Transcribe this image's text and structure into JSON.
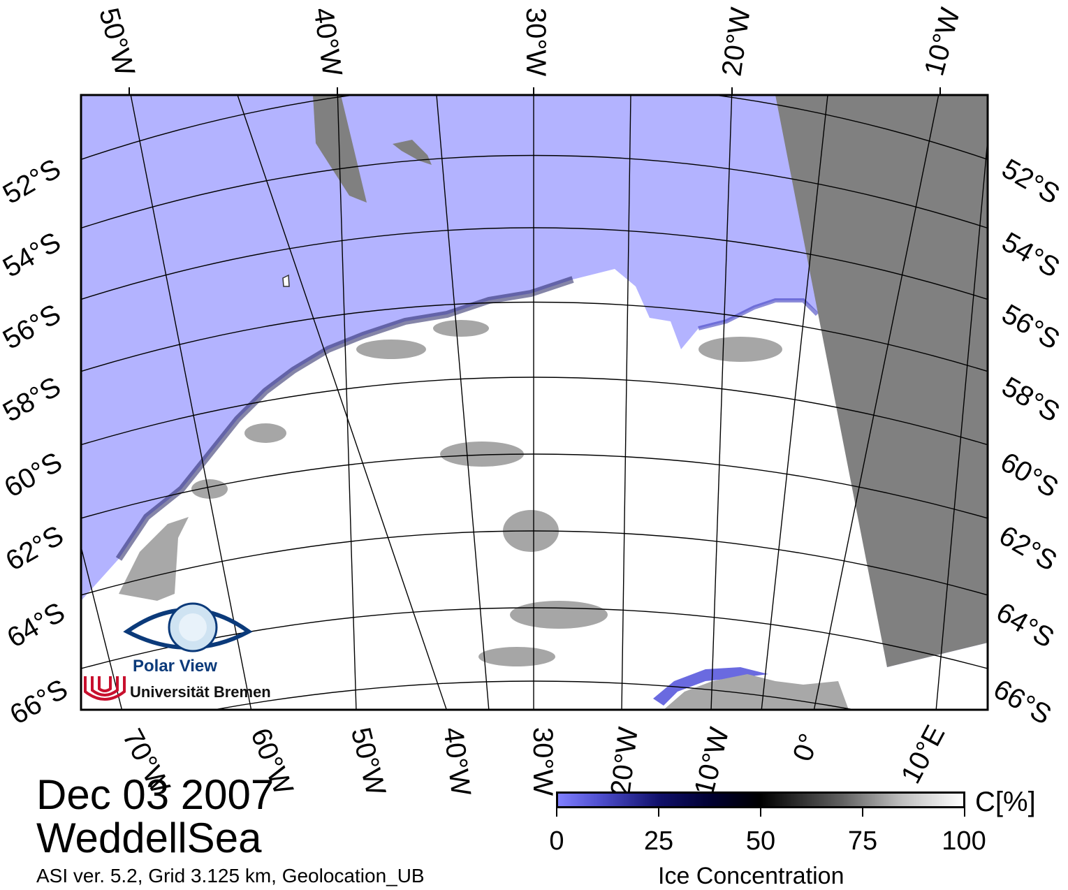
{
  "map": {
    "date": "Dec 03 2007",
    "region": "WeddellSea",
    "meta": "ASI ver. 5.2,  Grid 3.125 km, Geolocation_UB",
    "top_lon_labels": [
      "50°W",
      "40°W",
      "30°W",
      "20°W",
      "10°W"
    ],
    "bottom_lon_labels": [
      "70°W",
      "60°W",
      "50°W",
      "40°W",
      "30°W",
      "20°W",
      "10°W",
      "0°",
      "10°E"
    ],
    "left_lat_labels": [
      "52°S",
      "54°S",
      "56°S",
      "58°S",
      "60°S",
      "62°S",
      "64°S",
      "66°S"
    ],
    "right_lat_labels": [
      "52°S",
      "54°S",
      "56°S",
      "58°S",
      "60°S",
      "62°S",
      "64°S",
      "66°S"
    ],
    "colors": {
      "ocean": "#b3b3ff",
      "land_nodata": "#808080",
      "coast_gray": "#a8a8a8",
      "ice_high": "#ffffff",
      "ice_low": "#5555dd"
    }
  },
  "logo": {
    "name": "Polar View",
    "institution": "Universität Bremen"
  },
  "legend": {
    "unit": "C[%]",
    "title": "Ice Concentration",
    "ticks": [
      "0",
      "25",
      "50",
      "75",
      "100"
    ]
  }
}
